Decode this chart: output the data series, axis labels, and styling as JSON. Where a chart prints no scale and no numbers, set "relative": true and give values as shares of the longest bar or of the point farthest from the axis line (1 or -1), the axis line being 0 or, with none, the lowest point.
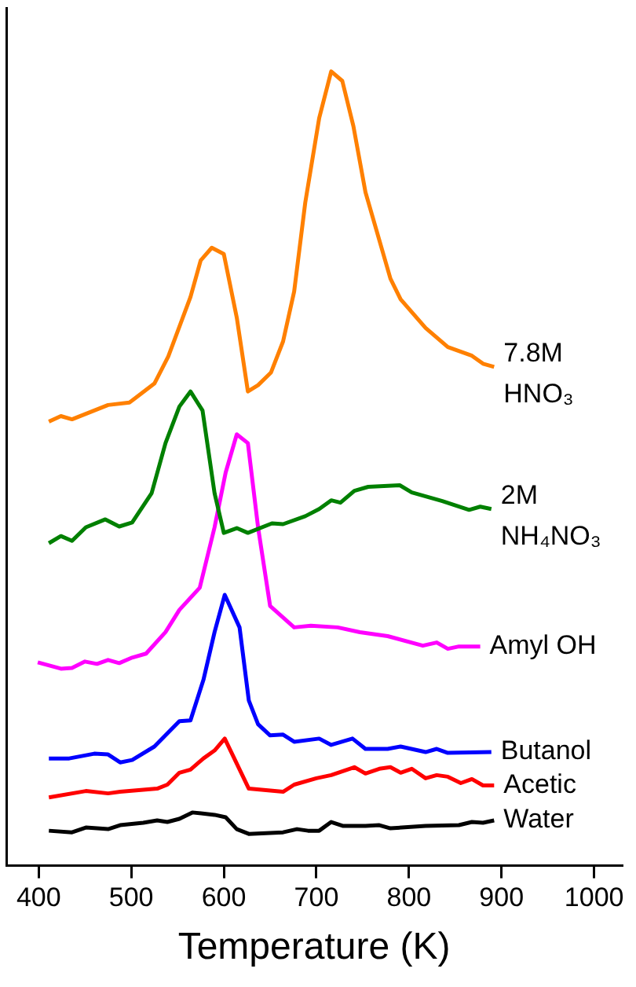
{
  "chart_data": {
    "type": "line",
    "xlabel": "Temperature (K)",
    "xlim": [
      365,
      1030
    ],
    "xticks": [
      400,
      500,
      600,
      700,
      800,
      900,
      1000
    ],
    "relative": true,
    "grid": false,
    "legend": false,
    "marker": "none",
    "line_style": "solid",
    "series": [
      {
        "name": "7.8M HNO₃",
        "color": "#ff8000",
        "x": [
          411,
          424,
          436,
          475,
          498,
          525,
          540,
          564,
          575,
          587,
          600,
          614,
          626,
          637,
          651,
          664,
          676,
          688,
          703,
          716,
          728,
          740,
          753,
          780,
          791,
          818,
          842,
          868,
          880,
          892
        ],
        "values": [
          0.559,
          0.566,
          0.562,
          0.58,
          0.583,
          0.607,
          0.641,
          0.716,
          0.762,
          0.778,
          0.77,
          0.69,
          0.597,
          0.605,
          0.621,
          0.66,
          0.723,
          0.835,
          0.941,
          1,
          0.988,
          0.931,
          0.848,
          0.739,
          0.713,
          0.677,
          0.653,
          0.642,
          0.632,
          0.628
        ]
      },
      {
        "name": "2M NH₄NO₃",
        "color": "#008000",
        "x": [
          411,
          424,
          436,
          451,
          472,
          487,
          501,
          522,
          537,
          552,
          564,
          577,
          590,
          600,
          614,
          626,
          652,
          664,
          688,
          703,
          716,
          726,
          741,
          756,
          790,
          803,
          818,
          836,
          865,
          877,
          889
        ],
        "values": [
          0.406,
          0.415,
          0.409,
          0.426,
          0.436,
          0.427,
          0.432,
          0.469,
          0.532,
          0.578,
          0.597,
          0.573,
          0.469,
          0.419,
          0.425,
          0.419,
          0.431,
          0.43,
          0.44,
          0.449,
          0.46,
          0.457,
          0.472,
          0.477,
          0.479,
          0.47,
          0.465,
          0.459,
          0.448,
          0.452,
          0.449
        ]
      },
      {
        "name": "Amyl OH",
        "color": "#ff00ff",
        "x": [
          399,
          424,
          436,
          450,
          463,
          475,
          487,
          501,
          516,
          537,
          552,
          574,
          590,
          602,
          614,
          626,
          637,
          650,
          676,
          694,
          723,
          747,
          777,
          815,
          830,
          842,
          854,
          877
        ],
        "values": [
          0.256,
          0.248,
          0.249,
          0.257,
          0.254,
          0.259,
          0.255,
          0.262,
          0.267,
          0.294,
          0.322,
          0.35,
          0.426,
          0.495,
          0.543,
          0.532,
          0.426,
          0.327,
          0.3,
          0.302,
          0.3,
          0.294,
          0.289,
          0.277,
          0.281,
          0.273,
          0.276,
          0.276
        ]
      },
      {
        "name": "Butanol",
        "color": "#0000ff",
        "x": [
          411,
          433,
          460,
          475,
          488,
          501,
          525,
          552,
          564,
          578,
          590,
          601,
          617,
          627,
          637,
          650,
          664,
          676,
          703,
          716,
          739,
          753,
          777,
          791,
          818,
          830,
          842,
          889
        ],
        "values": [
          0.135,
          0.135,
          0.141,
          0.14,
          0.13,
          0.133,
          0.15,
          0.182,
          0.183,
          0.234,
          0.294,
          0.341,
          0.3,
          0.208,
          0.178,
          0.164,
          0.165,
          0.156,
          0.16,
          0.152,
          0.16,
          0.147,
          0.147,
          0.15,
          0.143,
          0.147,
          0.142,
          0.143
        ]
      },
      {
        "name": "Acetic",
        "color": "#ff0000",
        "x": [
          411,
          451,
          475,
          488,
          528,
          539,
          552,
          564,
          578,
          590,
          601,
          627,
          664,
          676,
          700,
          716,
          741,
          753,
          768,
          780,
          791,
          803,
          818,
          830,
          842,
          856,
          868,
          880,
          892
        ],
        "values": [
          0.086,
          0.094,
          0.091,
          0.093,
          0.097,
          0.102,
          0.117,
          0.121,
          0.135,
          0.145,
          0.16,
          0.097,
          0.093,
          0.102,
          0.11,
          0.114,
          0.124,
          0.116,
          0.122,
          0.124,
          0.117,
          0.122,
          0.11,
          0.114,
          0.112,
          0.104,
          0.109,
          0.101,
          0.101
        ]
      },
      {
        "name": "Water",
        "color": "#000000",
        "x": [
          411,
          436,
          451,
          475,
          488,
          513,
          528,
          539,
          552,
          566,
          590,
          602,
          614,
          627,
          664,
          679,
          691,
          703,
          716,
          729,
          753,
          768,
          780,
          818,
          854,
          868,
          880,
          892
        ],
        "values": [
          0.044,
          0.042,
          0.048,
          0.046,
          0.051,
          0.054,
          0.057,
          0.055,
          0.059,
          0.067,
          0.064,
          0.061,
          0.046,
          0.04,
          0.042,
          0.046,
          0.044,
          0.044,
          0.055,
          0.05,
          0.05,
          0.051,
          0.047,
          0.05,
          0.051,
          0.055,
          0.054,
          0.057
        ]
      }
    ]
  }
}
